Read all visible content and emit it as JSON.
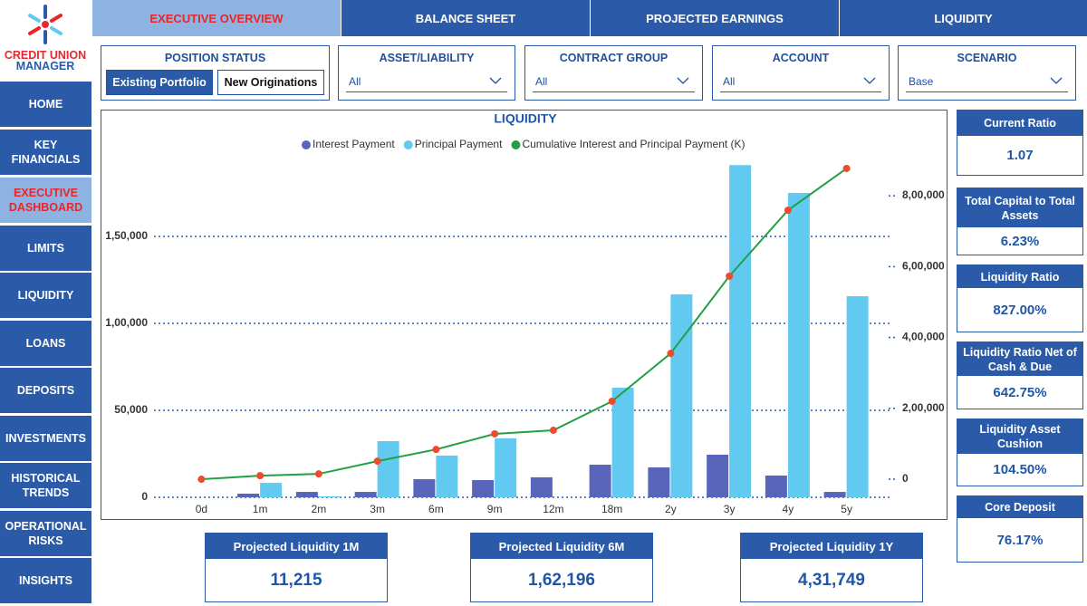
{
  "logo": {
    "line1": "CREDIT UNION",
    "line2": "MANAGER"
  },
  "tabs": [
    "EXECUTIVE OVERVIEW",
    "BALANCE SHEET",
    "PROJECTED EARNINGS",
    "LIQUIDITY"
  ],
  "sidebar": [
    "HOME",
    "KEY FINANCIALS",
    "EXECUTIVE DASHBOARD",
    "LIMITS",
    "LIQUIDITY",
    "LOANS",
    "DEPOSITS",
    "INVESTMENTS",
    "HISTORICAL TRENDS",
    "OPERATIONAL RISKS",
    "INSIGHTS"
  ],
  "position_status": {
    "title": "POSITION STATUS",
    "options": [
      "Existing Portfolio",
      "New Originations"
    ]
  },
  "filters": [
    {
      "label": "ASSET/LIABILITY",
      "value": "All"
    },
    {
      "label": "CONTRACT GROUP",
      "value": "All"
    },
    {
      "label": "ACCOUNT",
      "value": "All"
    },
    {
      "label": "SCENARIO",
      "value": "Base"
    }
  ],
  "chart_data": {
    "type": "bar",
    "title": "LIQUIDITY",
    "categories": [
      "0d",
      "1m",
      "2m",
      "3m",
      "6m",
      "9m",
      "12m",
      "18m",
      "2y",
      "3y",
      "4y",
      "5y"
    ],
    "series": [
      {
        "name": "Interest Payment",
        "color": "#5865bb",
        "values": [
          0,
          2100,
          3100,
          3100,
          10400,
          9900,
          11500,
          18750,
          17200,
          24500,
          12500,
          3100
        ]
      },
      {
        "name": "Principal Payment",
        "color": "#62c9f1",
        "values": [
          0,
          8300,
          500,
          32300,
          24000,
          33900,
          0,
          63000,
          116700,
          191000,
          175000,
          115600
        ]
      },
      {
        "name": "Cumulative Interest and Principal Payment (K)",
        "type": "line",
        "axis": "y2",
        "color": "#22a043",
        "marker_color": "#ee4a2c",
        "values": [
          0,
          10000,
          15000,
          51000,
          84000,
          128000,
          138000,
          220000,
          355000,
          573000,
          759000,
          877000
        ]
      }
    ],
    "ylim": [
      0,
      195000
    ],
    "yticks": [
      0,
      {
        "value": 50000,
        "label": "50,000"
      },
      {
        "value": 100000,
        "label": "1,00,000"
      },
      {
        "value": 150000,
        "label": "1,50,000"
      }
    ],
    "y2lim": [
      -51000,
      906000
    ],
    "y2ticks": [
      0,
      {
        "value": 200000,
        "label": "2,00,000"
      },
      {
        "value": 400000,
        "label": "4,00,000"
      },
      {
        "value": 600000,
        "label": "6,00,000"
      },
      {
        "value": 800000,
        "label": "8,00,000"
      }
    ],
    "grid": true
  },
  "kpis": [
    {
      "label": "Current Ratio",
      "value": "1.07"
    },
    {
      "label": "Total Capital to Total Assets",
      "value": "6.23%"
    },
    {
      "label": "Liquidity Ratio",
      "value": "827.00%"
    },
    {
      "label": "Liquidity Ratio Net of Cash & Due",
      "value": "642.75%"
    },
    {
      "label": "Liquidity Asset Cushion",
      "value": "104.50%"
    },
    {
      "label": "Core Deposit",
      "value": "76.17%"
    }
  ],
  "projected": [
    {
      "label": "Projected Liquidity 1M",
      "value": "11,215"
    },
    {
      "label": "Projected Liquidity 6M",
      "value": "1,62,196"
    },
    {
      "label": "Projected Liquidity 1Y",
      "value": "4,31,749"
    }
  ]
}
